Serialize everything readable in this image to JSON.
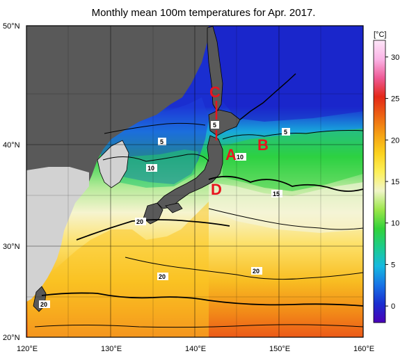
{
  "title": "Monthly mean 100m temperatures for Apr. 2017.",
  "unit": "[°C]",
  "lat_labels": [
    "50°N",
    "40°N",
    "30°N",
    "20°N"
  ],
  "lon_labels": [
    "120°E",
    "130°E",
    "140°E",
    "150°E",
    "160°E"
  ],
  "colorbar": {
    "min": -2,
    "max": 32,
    "ticks": [
      "30",
      "25",
      "20",
      "15",
      "10",
      "5",
      "0"
    ],
    "stops": [
      "#4b00b8",
      "#1a2ed0",
      "#1873e6",
      "#16b9e0",
      "#1ccc8c",
      "#32d23a",
      "#9be64a",
      "#f0f5c8",
      "#fdf05a",
      "#fbd21e",
      "#f5a014",
      "#ed6414",
      "#e42818",
      "#ee5a96",
      "#fab4e6",
      "#fde6f8"
    ]
  },
  "regions": [
    "A",
    "B",
    "C",
    "D"
  ],
  "contour_labels": [
    "5",
    "5",
    "5",
    "10",
    "10",
    "15",
    "20",
    "20",
    "20",
    "20"
  ],
  "colors": {
    "land": "#595959",
    "coast_land": "#d2d2d2",
    "region_label": "#e8141e"
  }
}
